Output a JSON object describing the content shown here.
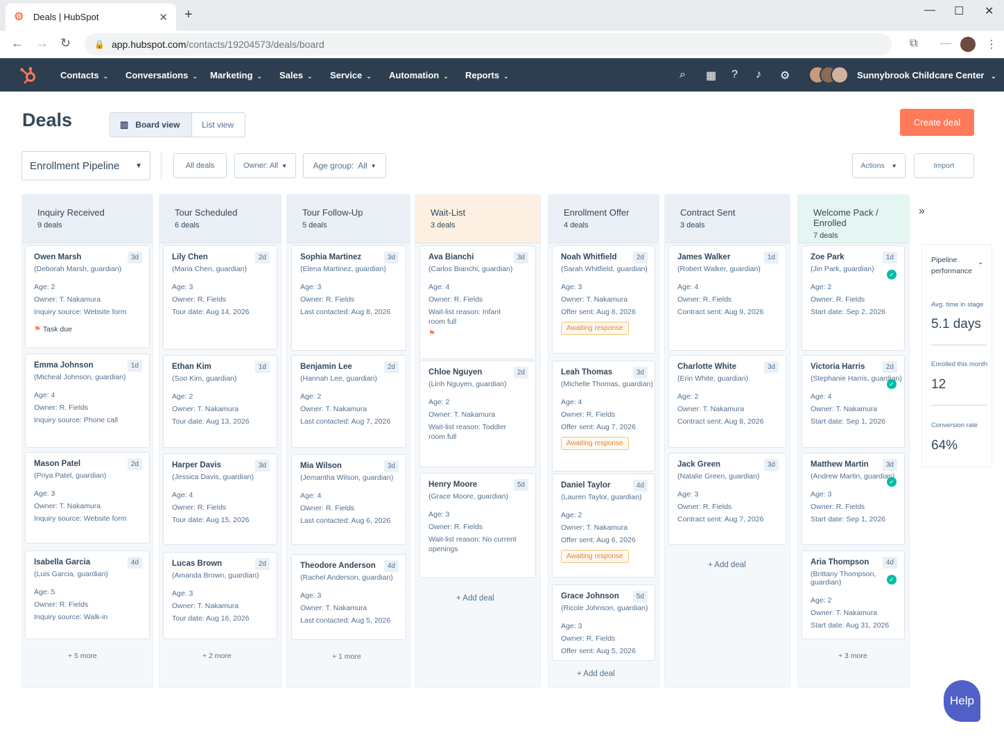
{
  "browser": {
    "tab_title": "Deals | HubSpot",
    "url_host": "app.hubspot.com",
    "url_path": "/contacts/19204573/deals/board"
  },
  "nav": {
    "items": [
      "Contacts",
      "Conversations",
      "Marketing",
      "Sales",
      "Service",
      "Automation",
      "Reports"
    ],
    "account": "Sunnybrook Childcare Center"
  },
  "page": {
    "title": "Deals",
    "board_view": "Board view",
    "list_view": "List view",
    "create_deal": "Create deal",
    "pipeline": "Enrollment Pipeline",
    "all_deals": "All deals",
    "owner_filter": "Owner: All",
    "age_filter": "Age group:  All",
    "actions": "Actions",
    "import": "Import"
  },
  "columns": [
    {
      "name": "Inquiry Received",
      "count": "9 deals",
      "more": "+ 5 more",
      "cards": [
        {
          "name": "Owen Marsh",
          "age": "3d",
          "guardian": "(Deborah Marsh, guardian)",
          "lines": [
            "Age: 2",
            "Owner: T. Nakamura",
            "Inquiry source: Website form"
          ],
          "task": "Task due"
        },
        {
          "name": "Emma Johnson",
          "age": "1d",
          "guardian": "(Micheal Johnson, guardian)",
          "lines": [
            "Age: 4",
            "Owner: R. Fields",
            "Inquiry source: Phone call"
          ]
        },
        {
          "name": "Mason Patel",
          "age": "2d",
          "guardian": "(Priya Patel, guardian)",
          "lines": [
            "Age: 3",
            "Owner: T. Nakamura",
            "Inquiry source: Website form"
          ]
        },
        {
          "name": "Isabella Garcia",
          "age": "4d",
          "guardian": "(Luis Garcia, guardian)",
          "lines": [
            "Age: 5",
            "Owner: R. Fields",
            "Inquiry source: Walk-in"
          ]
        }
      ]
    },
    {
      "name": "Tour Scheduled",
      "count": "6 deals",
      "more": "+ 2 more",
      "cards": [
        {
          "name": "Lily Chen",
          "age": "2d",
          "guardian": "(Maria Chen, guardian)",
          "lines": [
            "Age: 3",
            "Owner: R. Fields",
            "Tour date: Aug 14, 2026"
          ]
        },
        {
          "name": "Ethan Kim",
          "age": "1d",
          "guardian": "(Soo Kim, guardian)",
          "lines": [
            "Age: 2",
            "Owner: T. Nakamura",
            "Tour date: Aug 13, 2026"
          ]
        },
        {
          "name": "Harper Davis",
          "age": "3d",
          "guardian": "(Jessica Davis, guardian)",
          "lines": [
            "Age: 4",
            "Owner: R. Fields",
            "Tour date: Aug 15, 2026"
          ]
        },
        {
          "name": "Lucas Brown",
          "age": "2d",
          "guardian": "(Amanda Brown, guardian)",
          "lines": [
            "Age: 3",
            "Owner: T. Nakamura",
            "Tour date: Aug 16, 2026"
          ]
        }
      ]
    },
    {
      "name": "Tour Follow-Up",
      "count": "5 deals",
      "more": "+ 1 more",
      "cards": [
        {
          "name": "Sophia Martinez",
          "age": "3d",
          "guardian": "(Elena Martinez, guardian)",
          "lines": [
            "Age: 3",
            "Owner: R. Fields",
            "Last contacted: Aug 8, 2026"
          ]
        },
        {
          "name": "Benjamin Lee",
          "age": "2d",
          "guardian": "(Hannah Lee, guardian)",
          "lines": [
            "Age: 2",
            "Owner: T. Nakamura",
            "Last contacted: Aug 7, 2026"
          ]
        },
        {
          "name": "Mia Wilson",
          "age": "3d",
          "guardian": "(Jemantha Wilson, guardian)",
          "lines": [
            "Age: 4",
            "Owner: R. Fields",
            "Last contacted: Aug 6, 2026"
          ]
        },
        {
          "name": "Theodore Anderson",
          "age": "4d",
          "guardian": "(Rachel Anderson, guardian)",
          "lines": [
            "Age: 3",
            "Owner: T. Nakamura",
            "Last contacted: Aug 5, 2026"
          ]
        }
      ]
    },
    {
      "name": "Wait-List",
      "count": "3 deals",
      "more": "+ Add deal",
      "cards": [
        {
          "name": "Ava Bianchi",
          "age": "3d",
          "guardian": "(Carlos Bianchi, guardian)",
          "lines": [
            "Age: 4",
            "Owner: R. Fields",
            "Wait-list reason: Infant",
            "room full"
          ]
        },
        {
          "name": "Chloe Nguyen",
          "age": "2d",
          "guardian": "(Linh Nguyen, guardian)",
          "lines": [
            "Age: 2",
            "Owner: T. Nakamura",
            "Wait-list reason: Toddler",
            "room full"
          ]
        },
        {
          "name": "Henry Moore",
          "age": "5d",
          "guardian": "(Grace Moore, guardian)",
          "lines": [
            "Age: 3",
            "Owner: R. Fields",
            "Wait-list reason: No current",
            "openings"
          ]
        }
      ]
    },
    {
      "name": "Enrollment Offer",
      "count": "4 deals",
      "more": "+ Add deal",
      "cards": [
        {
          "name": "Noah Whitfield",
          "age": "2d",
          "guardian": "(Sarah Whitfield, guardian)",
          "lines": [
            "Age: 3",
            "Owner: T. Nakamura",
            "Offer sent: Aug 8, 2026"
          ],
          "badge": "Awaiting response"
        },
        {
          "name": "Leah Thomas",
          "age": "3d",
          "guardian": "(Michelle Thomas, guardian)",
          "lines": [
            "Age: 4",
            "Owner: R. Fields",
            "Offer sent: Aug 7, 2026"
          ],
          "badge": "Awaiting response"
        },
        {
          "name": "Daniel Taylor",
          "age": "4d",
          "guardian": "(Lauren Taylor, guardian)",
          "lines": [
            "Age: 2",
            "Owner: T. Nakamura",
            "Offer sent: Aug 6, 2026"
          ],
          "badge": "Awaiting response"
        },
        {
          "name": "Grace Johnson",
          "age": "5d",
          "guardian": "(Ricole Johnson, guardian)",
          "lines": [
            "Age: 3",
            "Owner: R. Fields",
            "Offer sent: Aug 5, 2026"
          ]
        }
      ]
    },
    {
      "name": "Contract Sent",
      "count": "3 deals",
      "more": "+ Add deal",
      "cards": [
        {
          "name": "James Walker",
          "age": "1d",
          "guardian": "(Robert Walker, guardian)",
          "lines": [
            "Age: 4",
            "Owner: R. Fields",
            "Contract sent: Aug 9, 2026"
          ]
        },
        {
          "name": "Charlotte White",
          "age": "3d",
          "guardian": "(Erin White, guardian)",
          "lines": [
            "Age: 2",
            "Owner: T. Nakamura",
            "Contract sent: Aug 8, 2026"
          ]
        },
        {
          "name": "Jack Green",
          "age": "3d",
          "guardian": "(Natalie Green, guardian)",
          "lines": [
            "Age: 3",
            "Owner: R. Fields",
            "Contract sent: Aug 7, 2026"
          ]
        }
      ]
    },
    {
      "name": "Welcome Pack / Enrolled",
      "count": "7 deals",
      "more": "+ 3 more",
      "cards": [
        {
          "name": "Zoe Park",
          "age": "1d",
          "guardian": "(Jin Park, guardian)",
          "lines": [
            "Age: 2",
            "Owner: R. Fields",
            "Start date: Sep 2, 2026"
          ]
        },
        {
          "name": "Victoria Harris",
          "age": "2d",
          "guardian": "(Stephanie Harris, guardian)",
          "lines": [
            "Age: 4",
            "Owner: T. Nakamura",
            "Start date: Sep 1, 2026"
          ]
        },
        {
          "name": "Matthew Martin",
          "age": "3d",
          "guardian": "(Andrew Martin, guardian)",
          "lines": [
            "Age: 3",
            "Owner: R. Fields",
            "Start date: Sep 1, 2026"
          ]
        },
        {
          "name": "Aria Thompson",
          "age": "4d",
          "guardian": "(Brittany Thompson, guardian)",
          "lines": [
            "Age: 2",
            "Owner: T. Nakamura",
            "Start date: Aug 31, 2026"
          ]
        }
      ]
    }
  ],
  "performance": {
    "title": "Pipeline performance",
    "avg_label": "Avg. time in stage",
    "avg_value": "5.1 days",
    "enrolled_label": "Enrolled this month",
    "enrolled_value": "12",
    "conversion_label": "Conversion rate",
    "conversion_value": "64%"
  },
  "help": "Help",
  "colors": {
    "accent": "#ff7a59",
    "nav": "#2d3e50",
    "waitlist_header": "#fdf0e2",
    "enrolled_header": "#e5f5f1"
  }
}
